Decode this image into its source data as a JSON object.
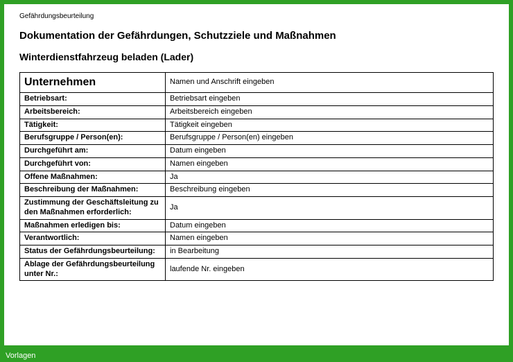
{
  "frame": {
    "border_color": "#2fa025",
    "background_color": "#ffffff",
    "footer_label": "Vorlagen"
  },
  "header": {
    "doc_label": "Gefährdungsbeurteilung",
    "title": "Dokumentation der Gefährdungen, Schutzziele und Maßnahmen",
    "subtitle": "Winterdienstfahrzeug beladen (Lader)"
  },
  "table": {
    "header_row": {
      "label": "Unternehmen",
      "value": "Namen und Anschrift eingeben"
    },
    "rows": [
      {
        "label": "Betriebsart:",
        "value": "Betriebsart eingeben"
      },
      {
        "label": "Arbeitsbereich:",
        "value": "Arbeitsbereich eingeben"
      },
      {
        "label": "Tätigkeit:",
        "value": "Tätigkeit eingeben"
      },
      {
        "label": "Berufsgruppe / Person(en):",
        "value": "Berufsgruppe / Person(en) eingeben"
      },
      {
        "label": "Durchgeführt am:",
        "value": "Datum eingeben"
      },
      {
        "label": "Durchgeführt von:",
        "value": "Namen eingeben"
      },
      {
        "label": "Offene Maßnahmen:",
        "value": "Ja"
      },
      {
        "label": "Beschreibung der Maßnahmen:",
        "value": "Beschreibung eingeben"
      },
      {
        "label": "Zustimmung der Geschäftsleitung zu den Maßnahmen erforderlich:",
        "value": "Ja"
      },
      {
        "label": "Maßnahmen erledigen bis:",
        "value": "Datum eingeben"
      },
      {
        "label": "Verantwortlich:",
        "value": "Namen eingeben"
      },
      {
        "label": "Status der Gefährdungsbeurteilung:",
        "value": "in Bearbeitung"
      },
      {
        "label": "Ablage der Gefährdungsbeurteilung unter Nr.:",
        "value": "laufende Nr. eingeben"
      }
    ]
  }
}
